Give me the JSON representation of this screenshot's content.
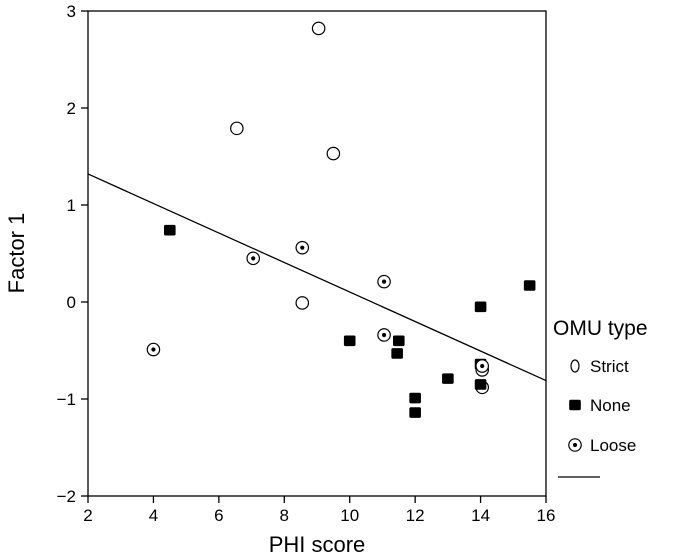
{
  "chart_data": {
    "type": "scatter",
    "title": "",
    "xlabel": "PHI score",
    "ylabel": "Factor 1",
    "xlim": [
      2,
      16
    ],
    "ylim": [
      -2,
      3
    ],
    "xticks": [
      2,
      4,
      6,
      8,
      10,
      12,
      14,
      16
    ],
    "yticks": [
      3,
      2,
      1,
      0,
      -1,
      -2
    ],
    "xtick_labels": [
      "2",
      "4",
      "6",
      "8",
      "10",
      "12",
      "14",
      "16"
    ],
    "ytick_labels": [
      "3",
      "2",
      "1",
      "0",
      "−1",
      "−2"
    ],
    "grid": false,
    "legend": {
      "title": "OMU type",
      "placement": "right",
      "entries": [
        "Strict",
        "None",
        "Loose"
      ]
    },
    "series": [
      {
        "name": "Strict",
        "marker": "open-circle",
        "points": [
          [
            9.05,
            2.82
          ],
          [
            6.55,
            1.79
          ],
          [
            9.5,
            1.53
          ],
          [
            8.55,
            -0.01
          ],
          [
            14.05,
            -0.7
          ],
          [
            14.05,
            -0.88
          ]
        ]
      },
      {
        "name": "None",
        "marker": "filled-square",
        "points": [
          [
            4.5,
            0.74
          ],
          [
            10.0,
            -0.4
          ],
          [
            11.5,
            -0.4
          ],
          [
            11.45,
            -0.53
          ],
          [
            12.0,
            -0.99
          ],
          [
            12.0,
            -1.14
          ],
          [
            13.0,
            -0.79
          ],
          [
            14.0,
            -0.05
          ],
          [
            14.0,
            -0.64
          ],
          [
            14.0,
            -0.85
          ],
          [
            15.5,
            0.17
          ]
        ]
      },
      {
        "name": "Loose",
        "marker": "dotted-circle",
        "points": [
          [
            4.0,
            -0.49
          ],
          [
            7.05,
            0.45
          ],
          [
            8.55,
            0.56
          ],
          [
            11.05,
            0.21
          ],
          [
            11.05,
            -0.34
          ],
          [
            14.05,
            -0.66
          ]
        ]
      }
    ],
    "fit_line": {
      "x": [
        2,
        16
      ],
      "y": [
        1.32,
        -0.81
      ]
    }
  }
}
